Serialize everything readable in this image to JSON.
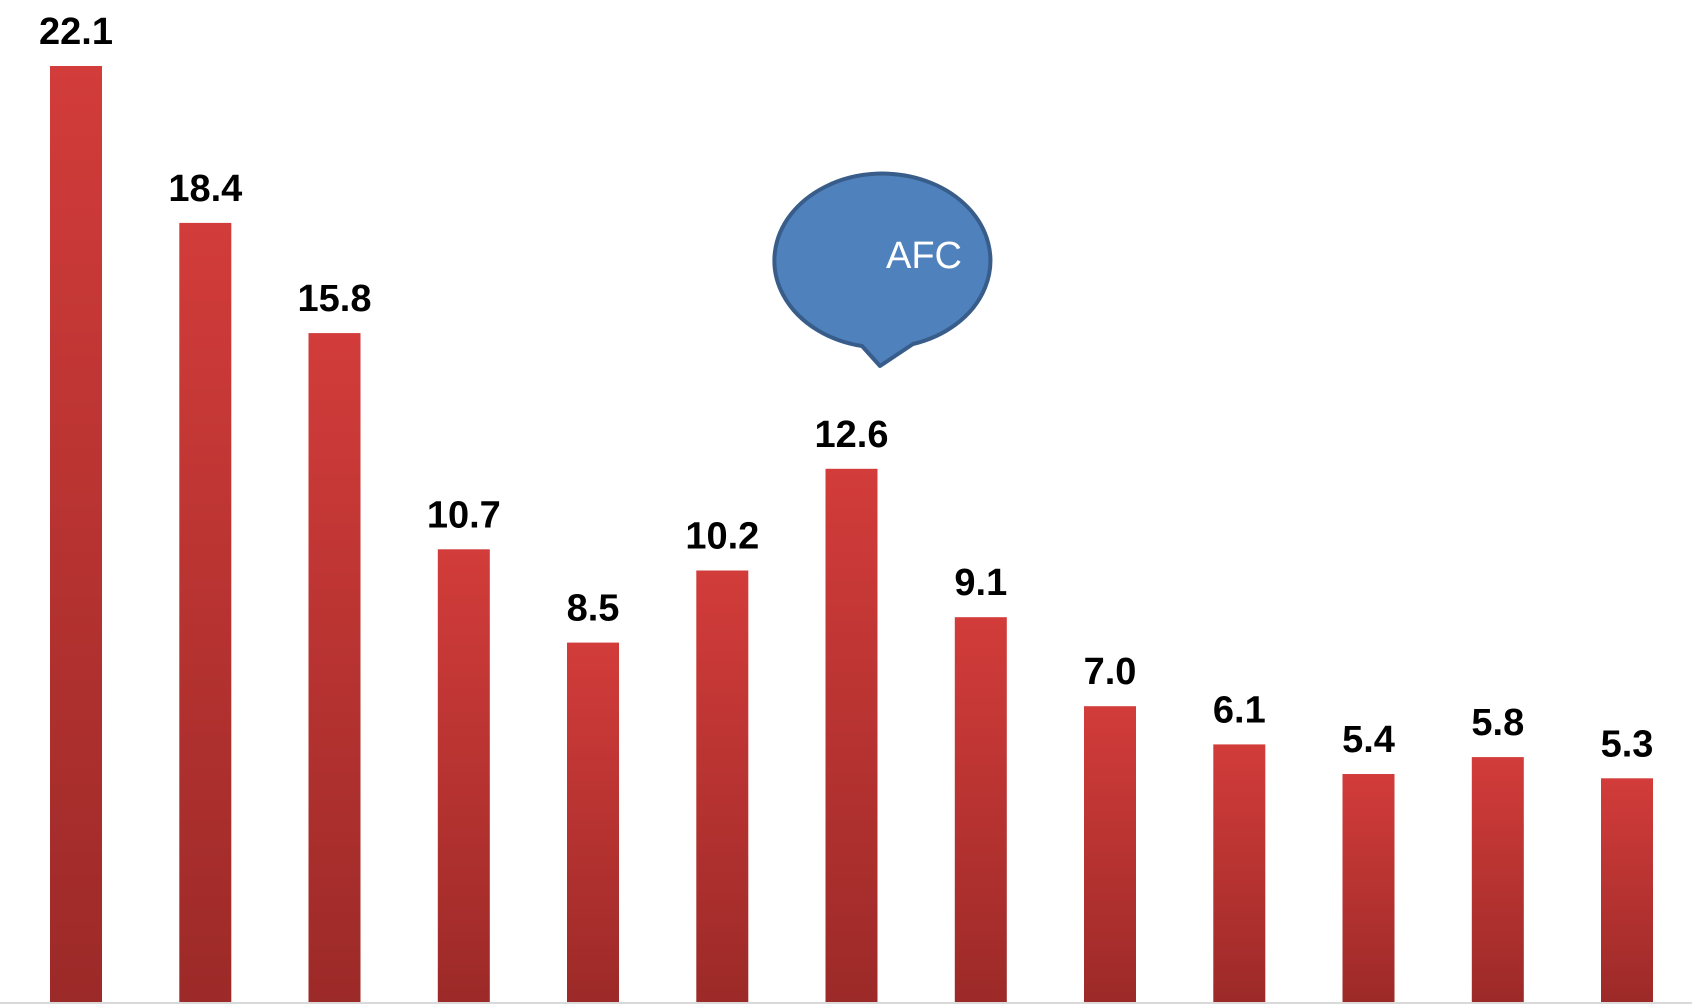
{
  "chart_data": {
    "type": "bar",
    "title": "",
    "xlabel": "",
    "ylabel": "",
    "categories": [],
    "values": [
      22.1,
      18.4,
      15.8,
      10.7,
      8.5,
      10.2,
      12.6,
      9.1,
      7.0,
      6.1,
      5.4,
      5.8,
      5.3
    ],
    "labels": [
      "22.1",
      "18.4",
      "15.8",
      "10.7",
      "8.5",
      "10.2",
      "12.6",
      "9.1",
      "7.0",
      "6.1",
      "5.4",
      "5.8",
      "5.3"
    ],
    "ylim": [
      0,
      22.1
    ],
    "grid": false,
    "legend": "none",
    "bar_color_top": "#d23c3a",
    "bar_color_bottom": "#9c2a28",
    "annotation": {
      "text": "AFC",
      "points_to_bar_index": 6,
      "fill": "#4f81bd",
      "stroke": "#385d8a",
      "text_color": "#ffffff"
    }
  }
}
